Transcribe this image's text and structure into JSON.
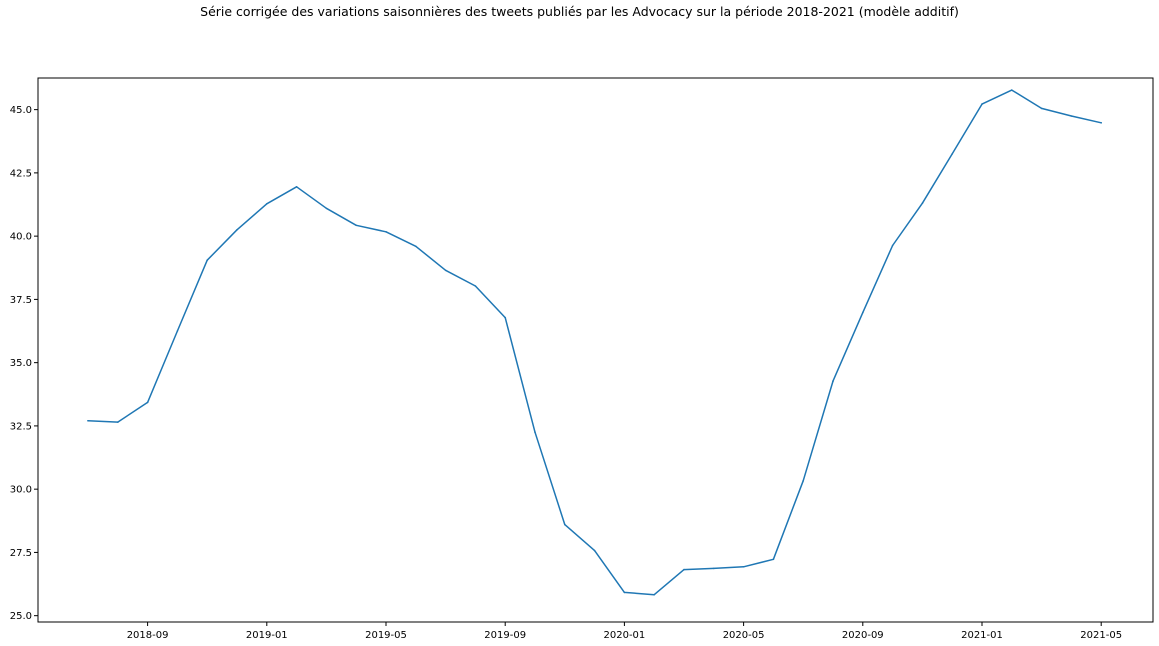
{
  "chart_data": {
    "type": "line",
    "title": "Série corrigée des variations saisonnières des tweets publiés par les Advocacy sur la période 2018-2021 (modèle additif)",
    "xlabel": "",
    "ylabel": "",
    "x": [
      "2018-07",
      "2018-08",
      "2018-09",
      "2018-10",
      "2018-11",
      "2018-12",
      "2019-01",
      "2019-02",
      "2019-03",
      "2019-04",
      "2019-05",
      "2019-06",
      "2019-07",
      "2019-08",
      "2019-09",
      "2019-10",
      "2019-11",
      "2019-12",
      "2020-01",
      "2020-02",
      "2020-03",
      "2020-04",
      "2020-05",
      "2020-06",
      "2020-07",
      "2020-08",
      "2020-09",
      "2020-10",
      "2020-11",
      "2020-12",
      "2021-01",
      "2021-02",
      "2021-03",
      "2021-04",
      "2021-05"
    ],
    "series": [
      {
        "name": "",
        "color": "#1f77b4",
        "values": [
          32.7,
          32.65,
          33.43,
          36.25,
          39.05,
          40.25,
          41.28,
          41.95,
          41.1,
          40.43,
          40.17,
          39.6,
          38.65,
          38.03,
          36.78,
          32.25,
          28.6,
          27.57,
          25.92,
          25.83,
          26.82,
          26.87,
          26.93,
          27.23,
          30.33,
          34.27,
          36.98,
          39.63,
          41.3,
          43.25,
          45.22,
          45.77,
          45.05,
          44.75,
          44.48
        ]
      }
    ],
    "ylim": [
      24.75,
      46.25
    ],
    "yticks": [
      "25.0",
      "27.5",
      "30.0",
      "32.5",
      "35.0",
      "37.5",
      "40.0",
      "42.5",
      "45.0"
    ],
    "xticks": [
      "2018-09",
      "2019-01",
      "2019-05",
      "2019-09",
      "2020-01",
      "2020-05",
      "2020-09",
      "2021-01",
      "2021-05"
    ],
    "grid": false,
    "legend": "none"
  }
}
